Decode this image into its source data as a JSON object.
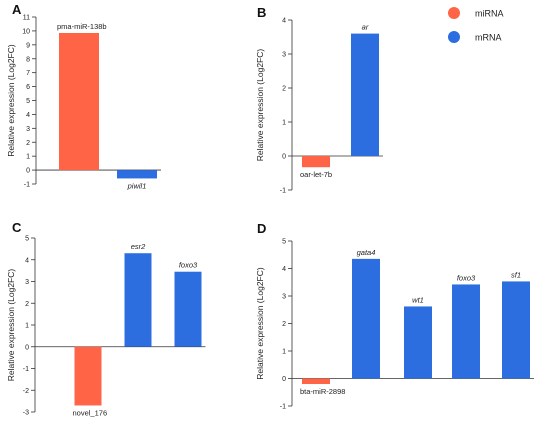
{
  "colors": {
    "mirna": "#FF6447",
    "mrna": "#2C6EE0"
  },
  "legend": [
    {
      "name": "miRNA",
      "color": "#FF6447"
    },
    {
      "name": "mRNA",
      "color": "#2C6EE0"
    }
  ],
  "chart_data": [
    {
      "panel": "A",
      "type": "bar",
      "ylabel": "Relative expression (Log2FC)",
      "ylim": [
        -1,
        11
      ],
      "yticks": [
        -1,
        0,
        1,
        2,
        3,
        4,
        5,
        6,
        7,
        8,
        9,
        10,
        11
      ],
      "grid": false,
      "bars": [
        {
          "label": "pma-miR-138b",
          "value": 9.85,
          "group": "miRNA",
          "italic": false
        },
        {
          "label": "piwil1",
          "value": -0.6,
          "group": "mRNA",
          "italic": true
        }
      ]
    },
    {
      "panel": "B",
      "type": "bar",
      "ylabel": "Relative expression (Log2FC)",
      "ylim": [
        -1,
        4
      ],
      "yticks": [
        -1,
        0,
        1,
        2,
        3,
        4
      ],
      "grid": false,
      "bars": [
        {
          "label": "oar-let-7b",
          "value": -0.33,
          "group": "miRNA",
          "italic": false
        },
        {
          "label": "ar",
          "value": 3.6,
          "group": "mRNA",
          "italic": true
        }
      ]
    },
    {
      "panel": "C",
      "type": "bar",
      "ylabel": "Relative expression (Log2FC)",
      "ylim": [
        -3,
        5
      ],
      "yticks": [
        -3,
        -2,
        -1,
        0,
        1,
        2,
        3,
        4,
        5
      ],
      "grid": false,
      "bars": [
        {
          "label": "novel_176",
          "value": -2.7,
          "group": "miRNA",
          "italic": false
        },
        {
          "label": "esr2",
          "value": 4.3,
          "group": "mRNA",
          "italic": true
        },
        {
          "label": "foxo3",
          "value": 3.45,
          "group": "mRNA",
          "italic": true
        }
      ]
    },
    {
      "panel": "D",
      "type": "bar",
      "ylabel": "Relative expression (Log2FC)",
      "ylim": [
        -1,
        5
      ],
      "yticks": [
        -1,
        0,
        1,
        2,
        3,
        4,
        5
      ],
      "grid": false,
      "bars": [
        {
          "label": "bta-miR-2898",
          "value": -0.2,
          "group": "miRNA",
          "italic": false
        },
        {
          "label": "gata4",
          "value": 4.35,
          "group": "mRNA",
          "italic": true
        },
        {
          "label": "wt1",
          "value": 2.62,
          "group": "mRNA",
          "italic": true
        },
        {
          "label": "foxo3",
          "value": 3.42,
          "group": "mRNA",
          "italic": true
        },
        {
          "label": "sf1",
          "value": 3.53,
          "group": "mRNA",
          "italic": true
        }
      ]
    }
  ]
}
